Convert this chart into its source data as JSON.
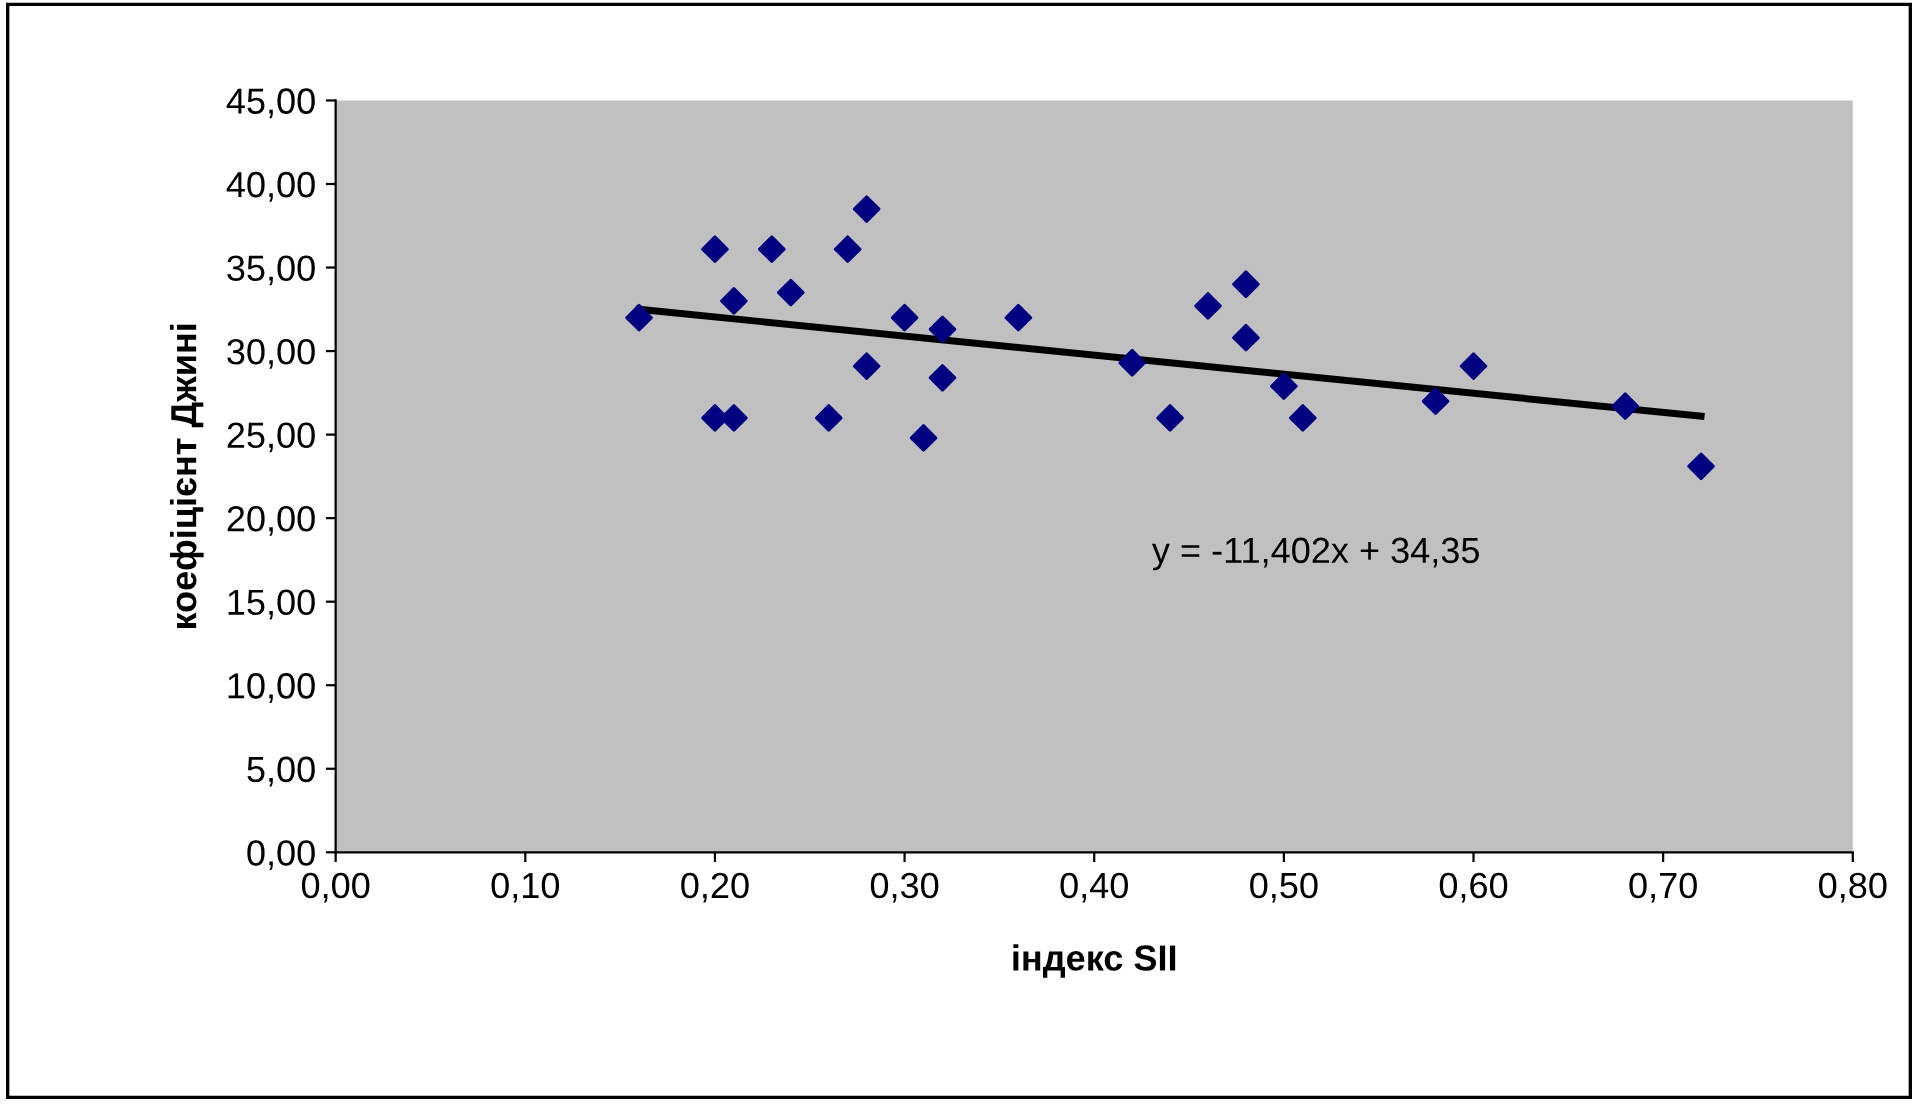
{
  "chart_data": {
    "type": "scatter",
    "xlabel": "індекс SII",
    "ylabel": "коефіцієнт Джині",
    "marker": "diamond",
    "grid": false,
    "legend": false,
    "xlim": [
      0,
      0.8
    ],
    "ylim": [
      0,
      45
    ],
    "xticks": [
      {
        "value": 0,
        "label": "0,00"
      },
      {
        "value": 0.1,
        "label": "0,10"
      },
      {
        "value": 0.2,
        "label": "0,20"
      },
      {
        "value": 0.3,
        "label": "0,30"
      },
      {
        "value": 0.4,
        "label": "0,40"
      },
      {
        "value": 0.5,
        "label": "0,50"
      },
      {
        "value": 0.6,
        "label": "0,60"
      },
      {
        "value": 0.7,
        "label": "0,70"
      },
      {
        "value": 0.8,
        "label": "0,80"
      }
    ],
    "yticks": [
      {
        "value": 0,
        "label": "0,00"
      },
      {
        "value": 5,
        "label": "5,00"
      },
      {
        "value": 10,
        "label": "10,00"
      },
      {
        "value": 15,
        "label": "15,00"
      },
      {
        "value": 20,
        "label": "20,00"
      },
      {
        "value": 25,
        "label": "25,00"
      },
      {
        "value": 30,
        "label": "30,00"
      },
      {
        "value": 35,
        "label": "35,00"
      },
      {
        "value": 40,
        "label": "40,00"
      },
      {
        "value": 45,
        "label": "45,00"
      }
    ],
    "series": [
      {
        "color": "#000080",
        "x": [
          0.16,
          0.2,
          0.2,
          0.21,
          0.21,
          0.23,
          0.24,
          0.26,
          0.27,
          0.28,
          0.28,
          0.3,
          0.31,
          0.32,
          0.32,
          0.36,
          0.42,
          0.44,
          0.46,
          0.48,
          0.48,
          0.5,
          0.51,
          0.58,
          0.6,
          0.68,
          0.72
        ],
        "values": [
          32.0,
          36.1,
          26.0,
          33.0,
          26.0,
          36.1,
          33.5,
          26.0,
          36.1,
          38.5,
          29.1,
          32.0,
          24.8,
          31.3,
          28.4,
          32.0,
          29.3,
          26.0,
          32.7,
          34.0,
          30.8,
          27.9,
          26.0,
          27.0,
          29.1,
          26.7,
          23.1
        ]
      },
      {
        "type": "line",
        "color": "#000000",
        "marker": "none",
        "line_style": "solid",
        "x": [
          0.16,
          0.72
        ],
        "values": [
          32.5,
          26.1
        ]
      }
    ],
    "annotations": [
      "y = -11,402x + 34,35"
    ]
  }
}
